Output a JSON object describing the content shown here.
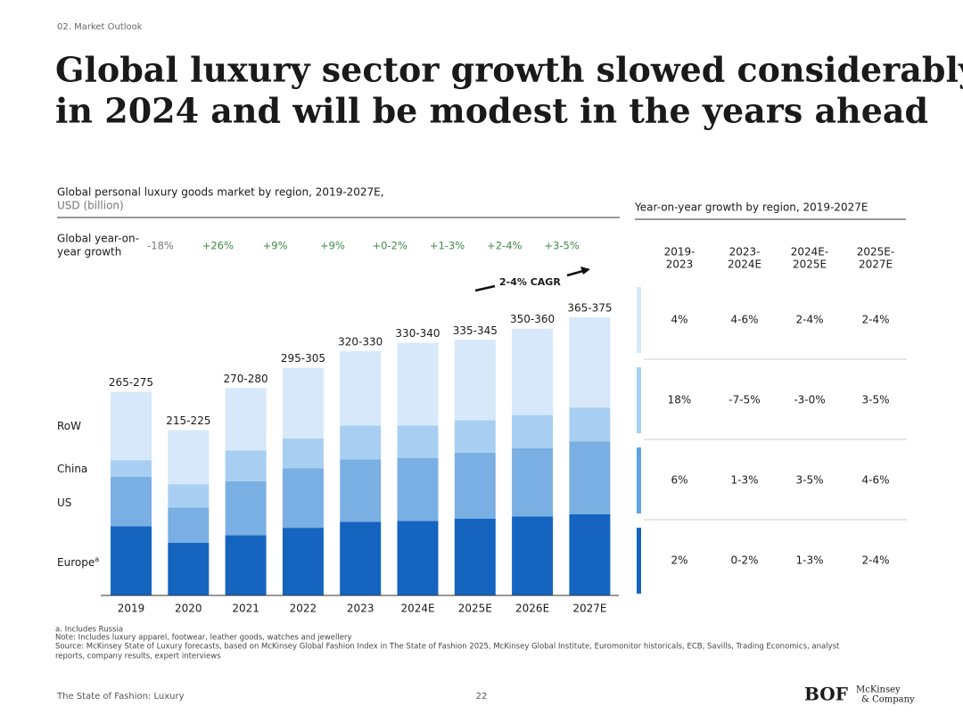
{
  "section": "02. Market Outlook",
  "title_lines": [
    "Global luxury sector growth slowed considerably",
    "in 2024 and will be modest in the years ahead"
  ],
  "chart_data": {
    "type": "stacked_bar",
    "title": "Global personal luxury goods market by region, 2019-2027E,",
    "unit": "USD (billion)",
    "categories": [
      "2019",
      "2020",
      "2021",
      "2022",
      "2023",
      "2024E",
      "2025E",
      "2026E",
      "2027E"
    ],
    "series": [
      {
        "name": "Europe",
        "marker": "a",
        "color": "#1565c0",
        "values": [
          92,
          70,
          80,
          90,
          98,
          99,
          102,
          105,
          108
        ]
      },
      {
        "name": "US",
        "color": "#7aafe3",
        "values": [
          66,
          47,
          72,
          79,
          83,
          84,
          88,
          91,
          97
        ]
      },
      {
        "name": "China",
        "color": "#a8cff2",
        "values": [
          22,
          31,
          41,
          40,
          45,
          43,
          43,
          44,
          45
        ]
      },
      {
        "name": "RoW",
        "color": "#d7e8fa",
        "values": [
          91,
          72,
          83,
          94,
          99,
          110,
          107,
          115,
          120
        ]
      }
    ],
    "total_labels": [
      "265-275",
      "215-225",
      "270-280",
      "295-305",
      "320-330",
      "330-340",
      "335-345",
      "350-360",
      "365-375"
    ],
    "growth_title_lines": [
      "Global year-on-",
      "year growth"
    ],
    "growth_labels": [
      "-18%",
      "+26%",
      "+9%",
      "+9%",
      "+0-2%",
      "+1-3%",
      "+2-4%",
      "+3-5%"
    ],
    "growth_positive_color": "#3d8b47",
    "growth_negative_color": "#777777",
    "annotation": "2-4% CAGR"
  },
  "table": {
    "title": "Year-on-year growth by region, 2019-2027E",
    "columns": [
      [
        "2019-",
        "2023"
      ],
      [
        "2023-",
        "2024E"
      ],
      [
        "2024E-",
        "2025E"
      ],
      [
        "2025E-",
        "2027E"
      ]
    ],
    "rows": [
      {
        "color": "#d7e8fa",
        "cells": [
          "4%",
          "4-6%",
          "2-4%",
          "2-4%"
        ]
      },
      {
        "color": "#a8cff2",
        "cells": [
          "18%",
          "-7-5%",
          "-3-0%",
          "3-5%"
        ]
      },
      {
        "color": "#5ea3e6",
        "cells": [
          "6%",
          "1-3%",
          "3-5%",
          "4-6%"
        ]
      },
      {
        "color": "#1565c0",
        "cells": [
          "2%",
          "0-2%",
          "1-3%",
          "2-4%"
        ]
      }
    ]
  },
  "notes": [
    "a. Includes Russia",
    "Note: Includes luxury apparel, footwear, leather goods, watches and jewellery",
    "Source: McKinsey State of Luxury forecasts, based on McKinsey Global Fashion Index in The State of Fashion 2025, McKinsey Global Institute, Euromonitor historicals, ECB, Savills, Trading  Economics, analyst",
    "reports, company results, expert interviews"
  ],
  "footer": {
    "left": "The State of Fashion: Luxury",
    "page": "22",
    "logo1": "BOF",
    "logo2_lines": [
      "McKinsey",
      "& Company"
    ]
  }
}
